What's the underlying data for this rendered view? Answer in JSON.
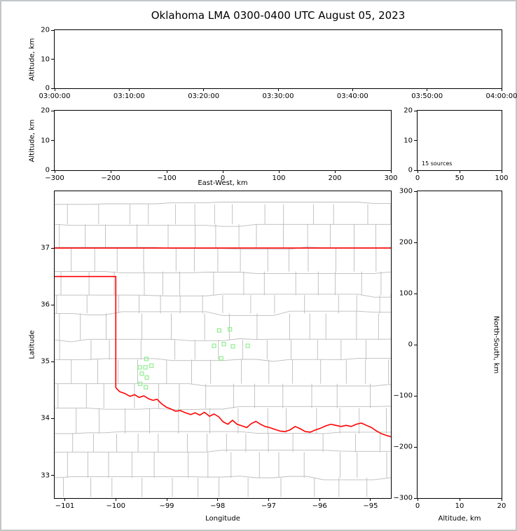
{
  "title": "Oklahoma LMA 0300-0400 UTC August 05, 2023",
  "colors": {
    "axis": "#000000",
    "county_lines": "#bcbcbc",
    "state_border": "#ff0000",
    "source_marker": "#90ee90"
  },
  "chart_data": [
    {
      "id": "time_height",
      "type": "scatter",
      "ylabel": "Altitude, km",
      "x_ticks": [
        "03:00:00",
        "03:10:00",
        "03:20:00",
        "03:30:00",
        "03:40:00",
        "03:50:00",
        "04:00:00"
      ],
      "ylim": [
        0,
        20
      ],
      "y_ticks": [
        0,
        10,
        20
      ],
      "points": []
    },
    {
      "id": "ew_height",
      "type": "scatter",
      "xlabel": "East-West, km",
      "ylabel": "Altitude, km",
      "xlim": [
        -300,
        300
      ],
      "x_ticks": [
        -300,
        -200,
        -100,
        0,
        100,
        200,
        300
      ],
      "ylim": [
        0,
        20
      ],
      "y_ticks": [
        0,
        10,
        20
      ],
      "points": []
    },
    {
      "id": "alt_histogram",
      "type": "line",
      "xlim": [
        0,
        100
      ],
      "x_ticks": [
        0,
        50,
        100
      ],
      "ylim": [
        0,
        20
      ],
      "y_ticks": [
        0,
        10,
        20
      ],
      "annotation": "15 sources",
      "points": []
    },
    {
      "id": "plan_view",
      "type": "scatter",
      "xlabel": "Longitude",
      "ylabel": "Latitude",
      "xlim": [
        -101.2,
        -94.6
      ],
      "x_ticks": [
        -101,
        -100,
        -99,
        -98,
        -97,
        -96,
        -95
      ],
      "ylim": [
        32.6,
        38.0
      ],
      "y_ticks": [
        33,
        34,
        35,
        36,
        37
      ],
      "marker": "open-square",
      "points": [
        [
          -99.4,
          35.05
        ],
        [
          -99.53,
          34.9
        ],
        [
          -99.42,
          34.9
        ],
        [
          -99.3,
          34.93
        ],
        [
          -99.49,
          34.79
        ],
        [
          -99.39,
          34.72
        ],
        [
          -99.52,
          34.61
        ],
        [
          -99.41,
          34.55
        ],
        [
          -97.97,
          35.55
        ],
        [
          -97.76,
          35.57
        ],
        [
          -98.07,
          35.28
        ],
        [
          -97.88,
          35.31
        ],
        [
          -97.7,
          35.27
        ],
        [
          -97.41,
          35.28
        ],
        [
          -97.93,
          35.06
        ]
      ],
      "state_border_segments": [
        [
          [
            -101.2,
            37.0
          ],
          [
            -94.6,
            37.0
          ]
        ],
        [
          [
            -101.2,
            36.5
          ],
          [
            -100.0,
            36.5
          ],
          [
            -100.0,
            34.54
          ]
        ],
        [
          [
            -100.0,
            34.54
          ],
          [
            -99.92,
            34.47
          ],
          [
            -99.82,
            34.44
          ],
          [
            -99.72,
            34.39
          ],
          [
            -99.63,
            34.42
          ],
          [
            -99.54,
            34.37
          ],
          [
            -99.45,
            34.4
          ],
          [
            -99.36,
            34.35
          ],
          [
            -99.27,
            34.32
          ],
          [
            -99.19,
            34.34
          ],
          [
            -99.1,
            34.26
          ],
          [
            -99.01,
            34.2
          ],
          [
            -98.92,
            34.17
          ],
          [
            -98.83,
            34.13
          ],
          [
            -98.73,
            34.14
          ],
          [
            -98.63,
            34.1
          ],
          [
            -98.53,
            34.07
          ],
          [
            -98.44,
            34.1
          ],
          [
            -98.35,
            34.06
          ],
          [
            -98.26,
            34.11
          ],
          [
            -98.16,
            34.04
          ],
          [
            -98.07,
            34.08
          ],
          [
            -97.98,
            34.03
          ],
          [
            -97.89,
            33.94
          ],
          [
            -97.8,
            33.9
          ],
          [
            -97.71,
            33.97
          ],
          [
            -97.62,
            33.9
          ],
          [
            -97.52,
            33.87
          ],
          [
            -97.43,
            33.84
          ],
          [
            -97.34,
            33.91
          ],
          [
            -97.25,
            33.95
          ],
          [
            -97.16,
            33.9
          ],
          [
            -97.07,
            33.86
          ],
          [
            -96.98,
            33.84
          ],
          [
            -96.88,
            33.81
          ],
          [
            -96.78,
            33.78
          ],
          [
            -96.68,
            33.77
          ],
          [
            -96.58,
            33.8
          ],
          [
            -96.48,
            33.86
          ],
          [
            -96.38,
            33.82
          ],
          [
            -96.28,
            33.77
          ],
          [
            -96.18,
            33.76
          ],
          [
            -96.08,
            33.8
          ],
          [
            -95.98,
            33.83
          ],
          [
            -95.88,
            33.87
          ],
          [
            -95.78,
            33.9
          ],
          [
            -95.68,
            33.88
          ],
          [
            -95.58,
            33.86
          ],
          [
            -95.48,
            33.88
          ],
          [
            -95.38,
            33.86
          ],
          [
            -95.28,
            33.9
          ],
          [
            -95.18,
            33.92
          ],
          [
            -95.08,
            33.88
          ],
          [
            -94.98,
            33.84
          ],
          [
            -94.88,
            33.78
          ],
          [
            -94.78,
            33.73
          ],
          [
            -94.68,
            33.7
          ],
          [
            -94.6,
            33.68
          ]
        ]
      ]
    },
    {
      "id": "ns_height",
      "type": "scatter",
      "xlabel": "Altitude, km",
      "ylabel_right": "North-South, km",
      "xlim": [
        0,
        20
      ],
      "x_ticks": [
        0,
        10,
        20
      ],
      "ylim": [
        -300,
        300
      ],
      "y_ticks": [
        300,
        200,
        100,
        0,
        -100,
        -200,
        -300
      ],
      "points": []
    }
  ]
}
